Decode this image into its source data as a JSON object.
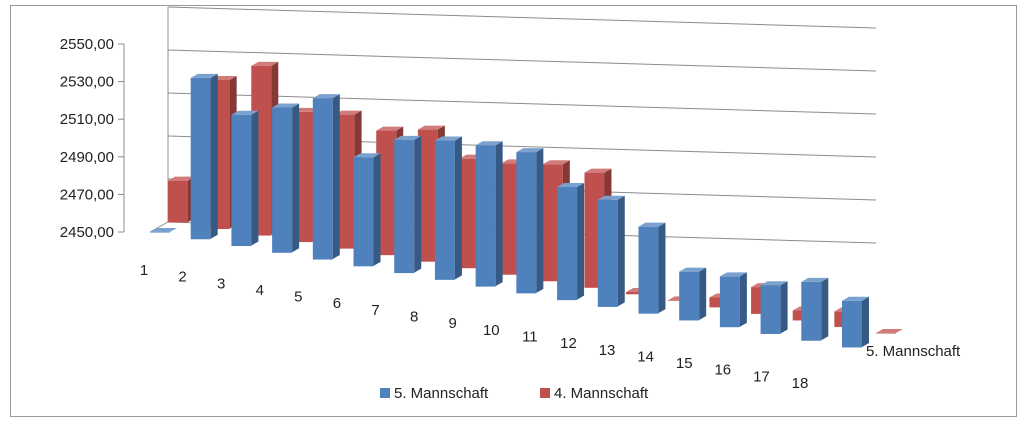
{
  "chart_data": {
    "type": "bar",
    "categories": [
      "1",
      "2",
      "3",
      "4",
      "5",
      "6",
      "7",
      "8",
      "9",
      "10",
      "11",
      "12",
      "13",
      "14",
      "15",
      "16",
      "17",
      "18"
    ],
    "series": [
      {
        "name": "5. Mannschaft",
        "color": "#4f81bd",
        "values": [
          2450,
          2530,
          2515,
          2522,
          2530,
          2504,
          2516,
          2519,
          2520,
          2520,
          2506,
          2503,
          2493,
          2474,
          2475,
          2474,
          2479,
          2473
        ]
      },
      {
        "name": "4. Mannschaft",
        "color": "#c0504d",
        "values": [
          2472,
          2529,
          2540,
          2519,
          2521,
          2516,
          2520,
          2508,
          2509,
          2512,
          2511,
          2451,
          2450,
          2455,
          2464,
          2455,
          2458,
          2449
        ]
      }
    ],
    "series_axis_label": "5. Mannschaft",
    "ylim": [
      2450,
      2550
    ],
    "yticks": [
      "2450,00",
      "2470,00",
      "2490,00",
      "2510,00",
      "2530,00",
      "2550,00"
    ],
    "grid": true,
    "legend_position": "bottom"
  }
}
